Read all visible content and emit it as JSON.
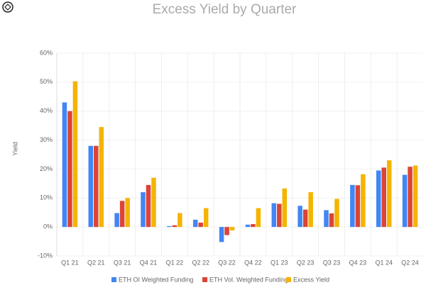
{
  "chart_data": {
    "type": "bar",
    "title": "Excess Yield by Quarter",
    "y_label": "Yield",
    "categories": [
      "Q1 21",
      "Q2 21",
      "Q3 21",
      "Q4 21",
      "Q1 22",
      "Q2 22",
      "Q3 22",
      "Q4 22",
      "Q1 23",
      "Q2 23",
      "Q3 23",
      "Q4 23",
      "Q1 24",
      "Q2 24"
    ],
    "series": [
      {
        "name": "ETH OI Weighted Funding",
        "color": "#4285f4",
        "values": [
          43,
          28,
          4.8,
          12,
          0.3,
          2.5,
          -5.2,
          0.8,
          8.2,
          7.3,
          5.8,
          14.5,
          19.5,
          18
        ]
      },
      {
        "name": "ETH Vol. Weighted Funding",
        "color": "#db4437",
        "values": [
          40,
          28,
          9,
          14.5,
          0.6,
          1.5,
          -2.8,
          1,
          8,
          6,
          4.7,
          14.4,
          20.5,
          20.8
        ]
      },
      {
        "name": "Excess Yield",
        "color": "#f4b400",
        "values": [
          50.3,
          34.5,
          10,
          17,
          4.8,
          6.5,
          -1.2,
          6.5,
          13.3,
          12,
          9.7,
          18.2,
          23,
          21.2
        ]
      }
    ],
    "ylim": [
      -10,
      60
    ],
    "yticks": [
      {
        "value": -10,
        "label": "-10%"
      },
      {
        "value": 0,
        "label": "0%"
      },
      {
        "value": 10,
        "label": "10%"
      },
      {
        "value": 20,
        "label": "20%"
      },
      {
        "value": 30,
        "label": "30%"
      },
      {
        "value": 40,
        "label": "40%"
      },
      {
        "value": 50,
        "label": "50%"
      },
      {
        "value": 60,
        "label": "60%"
      }
    ],
    "grid": true
  }
}
